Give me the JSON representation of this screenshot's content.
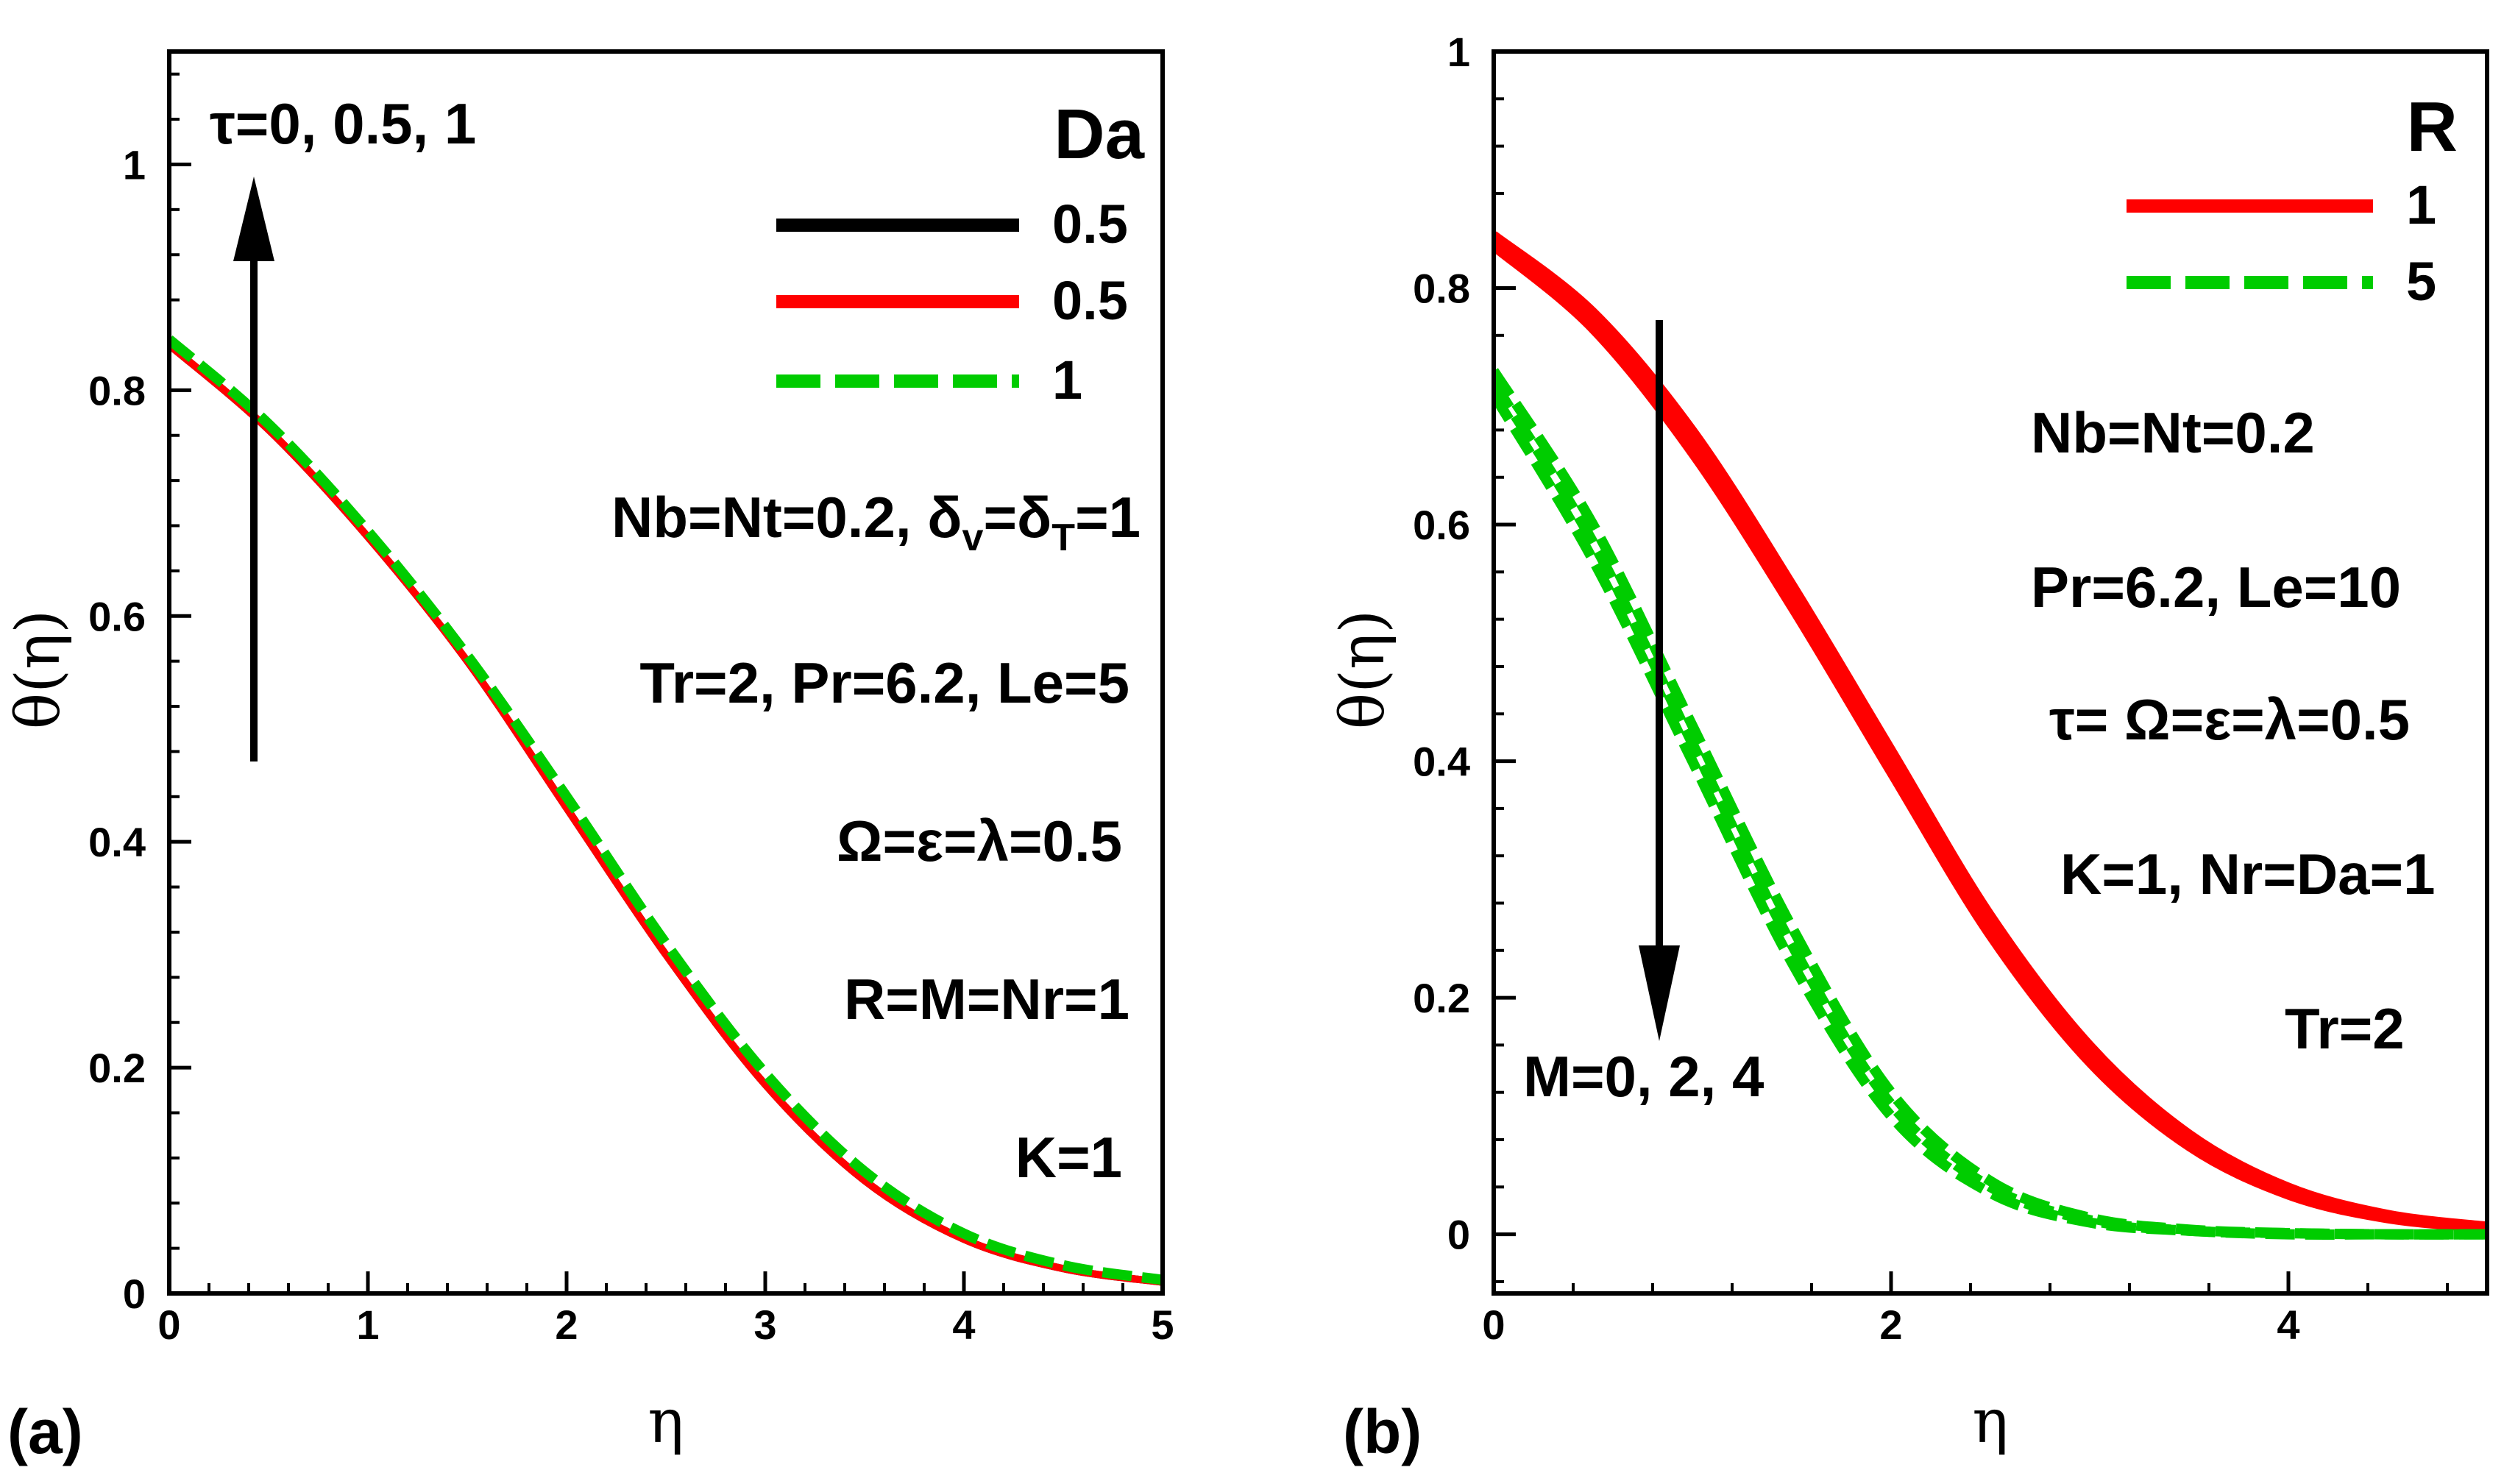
{
  "chart_data": [
    {
      "type": "line",
      "panel_label": "(a)",
      "xlabel": "η",
      "ylabel": "θ(η)",
      "xlim": [
        0,
        5
      ],
      "ylim": [
        0,
        1.1
      ],
      "xticks": [
        "0",
        "1",
        "2",
        "3",
        "4",
        "5"
      ],
      "yticks": [
        "0",
        "0.2",
        "0.4",
        "0.6",
        "0.8",
        "1"
      ],
      "legend_title": "Da",
      "legend_entries": [
        "0.5",
        "0.5",
        "1"
      ],
      "series_colors": [
        "#000000",
        "#ff0000",
        "#00cc00"
      ],
      "arrow_label": "τ=0, 0.5, 1",
      "params_lines": [
        "Nb=Nt=0.2, δv=δT=1",
        "Tr=2, Pr=6.2, Le=5",
        "Ω=ε=λ=0.5",
        "R=M=Nr=1",
        "K=1"
      ],
      "subscript_v": "v",
      "subscript_T": "T",
      "x": [
        0,
        0.5,
        1,
        1.5,
        2,
        2.5,
        3,
        3.5,
        4,
        4.5,
        5
      ],
      "series": [
        {
          "name": "Da=0.5",
          "style": "solid",
          "color": "#000000",
          "values": [
            0.84,
            0.765,
            0.67,
            0.56,
            0.43,
            0.3,
            0.185,
            0.1,
            0.048,
            0.022,
            0.01
          ]
        },
        {
          "name": "Da=0.5",
          "style": "solid",
          "color": "#ff0000",
          "values": [
            0.84,
            0.765,
            0.67,
            0.56,
            0.43,
            0.3,
            0.185,
            0.1,
            0.048,
            0.022,
            0.01
          ]
        },
        {
          "name": "Da=1",
          "style": "dashed",
          "color": "#00cc00",
          "values": [
            0.845,
            0.77,
            0.675,
            0.565,
            0.44,
            0.31,
            0.195,
            0.108,
            0.053,
            0.025,
            0.012
          ]
        }
      ]
    },
    {
      "type": "line",
      "panel_label": "(b)",
      "xlabel": "η",
      "ylabel": "θ(η)",
      "xlim": [
        0,
        5
      ],
      "ylim": [
        -0.05,
        1
      ],
      "xticks": [
        "0",
        "2",
        "4"
      ],
      "yticks": [
        "0",
        "0.2",
        "0.4",
        "0.6",
        "0.8",
        "1"
      ],
      "legend_title": "R",
      "legend_entries": [
        "1",
        "5"
      ],
      "series_colors": [
        "#ff0000",
        "#00cc00"
      ],
      "arrow_label": "M=0, 2, 4",
      "params_lines": [
        "Nb=Nt=0.2",
        "Pr=6.2, Le=10",
        "τ= Ω=ε=λ=0.5",
        "K=1, Nr=Da=1",
        "Tr=2"
      ],
      "x": [
        0,
        0.5,
        1,
        1.5,
        2,
        2.5,
        3,
        3.5,
        4,
        4.5,
        5
      ],
      "series": [
        {
          "name": "R=1, M=0",
          "style": "solid",
          "color": "#ff0000",
          "values": [
            0.845,
            0.78,
            0.68,
            0.55,
            0.41,
            0.27,
            0.16,
            0.085,
            0.04,
            0.017,
            0.007
          ]
        },
        {
          "name": "R=1, M=2",
          "style": "solid",
          "color": "#ff0000",
          "values": [
            0.84,
            0.772,
            0.67,
            0.54,
            0.4,
            0.262,
            0.152,
            0.08,
            0.036,
            0.015,
            0.006
          ]
        },
        {
          "name": "R=1, M=4",
          "style": "solid",
          "color": "#ff0000",
          "values": [
            0.835,
            0.765,
            0.66,
            0.53,
            0.39,
            0.252,
            0.145,
            0.074,
            0.033,
            0.013,
            0.005
          ]
        },
        {
          "name": "R=5, M=0",
          "style": "dashed",
          "color": "#00cc00",
          "values": [
            0.73,
            0.6,
            0.43,
            0.26,
            0.12,
            0.045,
            0.014,
            0.004,
            0.001,
            0.0,
            0.0
          ]
        },
        {
          "name": "R=5, M=2",
          "style": "dashed",
          "color": "#00cc00",
          "values": [
            0.72,
            0.585,
            0.415,
            0.245,
            0.11,
            0.04,
            0.012,
            0.003,
            0.001,
            0.0,
            0.0
          ]
        },
        {
          "name": "R=5, M=4",
          "style": "dashed",
          "color": "#00cc00",
          "values": [
            0.71,
            0.57,
            0.4,
            0.23,
            0.1,
            0.035,
            0.01,
            0.003,
            0.0,
            0.0,
            0.0
          ]
        }
      ]
    }
  ]
}
